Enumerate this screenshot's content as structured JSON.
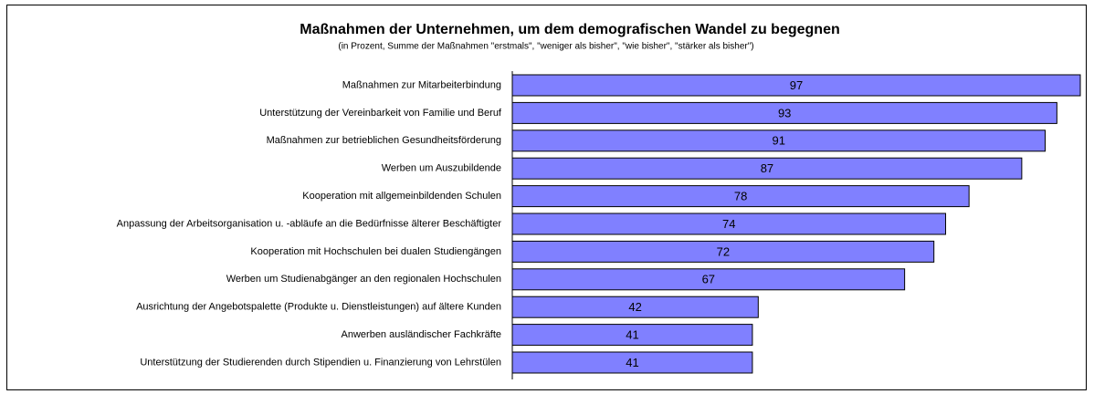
{
  "chart_data": {
    "type": "bar",
    "orientation": "horizontal",
    "title": "Maßnahmen der Unternehmen, um dem demografischen Wandel zu begegnen",
    "subtitle": "(in Prozent, Summe der Maßnahmen \"erstmals\", \"weniger als bisher\", \"wie bisher\", \"stärker als bisher\")",
    "categories": [
      "Maßnahmen zur Mitarbeiterbindung",
      "Unterstützung der Vereinbarkeit von Familie und Beruf",
      "Maßnahmen zur betrieblichen Gesundheitsförderung",
      "Werben um Auszubildende",
      "Kooperation mit allgemeinbildenden Schulen",
      "Anpassung der Arbeitsorganisation u. -abläufe an die Bedürfnisse älterer Beschäftigter",
      "Kooperation mit Hochschulen bei dualen Studiengängen",
      "Werben um Studienabgänger an den regionalen Hochschulen",
      "Ausrichtung der Angebotspalette (Produkte u. Dienstleistungen) auf ältere Kunden",
      "Anwerben ausländischer Fachkräfte",
      "Unterstützung der Studierenden durch Stipendien u. Finanzierung von Lehrstülen"
    ],
    "values": [
      97,
      93,
      91,
      87,
      78,
      74,
      72,
      67,
      42,
      41,
      41
    ],
    "color": "#8080ff"
  }
}
